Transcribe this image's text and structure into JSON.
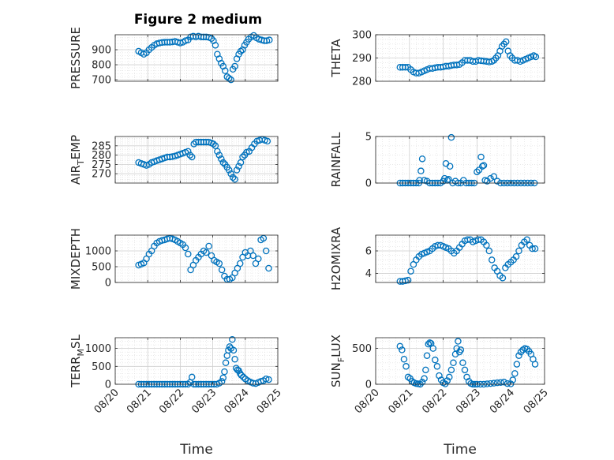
{
  "title": "Figure 2 medium",
  "chart_data": {
    "type": "scatter",
    "marker": "open-circle",
    "color": "#0072BD",
    "grid": "major+minor",
    "xlabel": "Time",
    "x_ticks": [
      "08/20",
      "08/21",
      "08/22",
      "08/23",
      "08/24",
      "08/25"
    ],
    "xlim_days": [
      20,
      25
    ],
    "panels": [
      {
        "id": "pressure",
        "ylabel": "PRESSURE",
        "ylim": [
          690,
          1000
        ],
        "yticks": [
          700,
          800,
          900
        ],
        "x": [
          20.72,
          20.8,
          20.88,
          20.96,
          21.04,
          21.12,
          21.2,
          21.28,
          21.36,
          21.44,
          21.52,
          21.6,
          21.68,
          21.76,
          21.84,
          21.92,
          22.0,
          22.08,
          22.16,
          22.24,
          22.32,
          22.4,
          22.48,
          22.56,
          22.64,
          22.72,
          22.8,
          22.88,
          22.96,
          23.02,
          23.08,
          23.14,
          23.2,
          23.26,
          23.32,
          23.38,
          23.44,
          23.5,
          23.56,
          23.62,
          23.68,
          23.74,
          23.8,
          23.86,
          23.92,
          23.98,
          24.04,
          24.1,
          24.18,
          24.26,
          24.34,
          24.42,
          24.5,
          24.58,
          24.66,
          24.74
        ],
        "y": [
          890,
          880,
          870,
          880,
          900,
          915,
          930,
          940,
          945,
          948,
          950,
          950,
          950,
          952,
          955,
          950,
          945,
          950,
          960,
          965,
          985,
          990,
          985,
          990,
          985,
          985,
          985,
          982,
          975,
          960,
          930,
          870,
          840,
          810,
          790,
          760,
          720,
          710,
          700,
          770,
          790,
          840,
          870,
          890,
          900,
          930,
          950,
          970,
          985,
          995,
          980,
          970,
          965,
          960,
          960,
          965
        ]
      },
      {
        "id": "theta",
        "ylabel": "THETA",
        "ylim": [
          280,
          300
        ],
        "yticks": [
          280,
          290,
          300
        ],
        "x": [
          20.72,
          20.8,
          20.88,
          20.96,
          21.04,
          21.12,
          21.2,
          21.28,
          21.36,
          21.44,
          21.52,
          21.6,
          21.68,
          21.76,
          21.84,
          21.92,
          22.0,
          22.08,
          22.16,
          22.24,
          22.32,
          22.4,
          22.48,
          22.56,
          22.64,
          22.72,
          22.8,
          22.88,
          22.96,
          23.04,
          23.12,
          23.2,
          23.28,
          23.36,
          23.44,
          23.5,
          23.56,
          23.62,
          23.68,
          23.74,
          23.8,
          23.86,
          23.92,
          23.98,
          24.04,
          24.12,
          24.2,
          24.28,
          24.36,
          24.44,
          24.52,
          24.6,
          24.68,
          24.74
        ],
        "y": [
          286,
          286,
          286,
          286,
          285,
          284,
          283.5,
          283.5,
          284,
          284.5,
          285,
          285.5,
          285.5,
          285.8,
          286,
          286,
          286.2,
          286.5,
          286.5,
          286.8,
          287,
          287,
          287.2,
          288,
          289,
          289,
          289,
          288.5,
          288.5,
          289,
          288.8,
          288.7,
          288.5,
          288.3,
          288.5,
          289,
          290,
          291,
          293,
          295,
          296,
          297,
          293,
          291,
          290,
          289,
          289,
          288.5,
          289,
          289.5,
          290,
          290.5,
          291,
          290.5
        ]
      },
      {
        "id": "air_temp",
        "ylabel": "AIR_TEMP",
        "ylim": [
          265,
          290
        ],
        "yticks": [
          270,
          275,
          280,
          285
        ],
        "x": [
          20.72,
          20.8,
          20.88,
          20.96,
          21.04,
          21.12,
          21.2,
          21.28,
          21.36,
          21.44,
          21.52,
          21.6,
          21.68,
          21.76,
          21.84,
          21.92,
          22.0,
          22.08,
          22.16,
          22.24,
          22.3,
          22.36,
          22.42,
          22.48,
          22.56,
          22.64,
          22.72,
          22.8,
          22.88,
          22.96,
          23.02,
          23.08,
          23.14,
          23.2,
          23.26,
          23.32,
          23.38,
          23.44,
          23.5,
          23.56,
          23.62,
          23.68,
          23.74,
          23.8,
          23.86,
          23.92,
          23.98,
          24.04,
          24.12,
          24.2,
          24.28,
          24.36,
          24.44,
          24.52,
          24.6,
          24.68
        ],
        "y": [
          276,
          275.5,
          275,
          274.5,
          275,
          276,
          276.5,
          277,
          277.5,
          278,
          278.5,
          279,
          279,
          279.2,
          279.5,
          280,
          280.5,
          281,
          281.5,
          282,
          280,
          279,
          286,
          287,
          287,
          287,
          287,
          287,
          287,
          286.5,
          286,
          285,
          282,
          280,
          278,
          276,
          275,
          273.5,
          272,
          270,
          268,
          267,
          272,
          274,
          276,
          279,
          280,
          281.5,
          282,
          284,
          286,
          287.5,
          288,
          288.5,
          288,
          287.5
        ]
      },
      {
        "id": "rainfall",
        "ylabel": "RAINFALL",
        "ylim": [
          0,
          5
        ],
        "yticks": [
          0,
          5
        ],
        "x": [
          20.72,
          20.8,
          20.88,
          20.96,
          21.04,
          21.12,
          21.2,
          21.28,
          21.3,
          21.34,
          21.38,
          21.44,
          21.52,
          21.6,
          21.68,
          21.76,
          21.84,
          21.92,
          22.0,
          22.04,
          22.08,
          22.12,
          22.16,
          22.2,
          22.24,
          22.28,
          22.36,
          22.44,
          22.52,
          22.6,
          22.68,
          22.76,
          22.84,
          22.92,
          23.0,
          23.06,
          23.12,
          23.16,
          23.2,
          23.24,
          23.3,
          23.4,
          23.5,
          23.6,
          23.7,
          23.8,
          23.9,
          24.0,
          24.1,
          24.2,
          24.3,
          24.4,
          24.5,
          24.6,
          24.7
        ],
        "y": [
          0,
          0,
          0,
          0,
          0,
          0,
          0,
          0,
          0.3,
          1.3,
          2.6,
          0.3,
          0.2,
          0,
          0,
          0,
          0,
          0,
          0.2,
          0.5,
          2.1,
          0.3,
          0.4,
          1.8,
          4.9,
          0,
          0.2,
          0,
          0,
          0.3,
          0,
          0,
          0,
          0,
          1.2,
          1.4,
          2.8,
          1.8,
          1.9,
          0.3,
          0.2,
          0.5,
          0.7,
          0.2,
          0,
          0,
          0,
          0,
          0,
          0,
          0,
          0,
          0,
          0,
          0
        ]
      },
      {
        "id": "mixdepth",
        "ylabel": "MIXDEPTH",
        "ylim": [
          0,
          1500
        ],
        "yticks": [
          0,
          500,
          1000
        ],
        "x": [
          20.72,
          20.8,
          20.88,
          20.96,
          21.04,
          21.12,
          21.2,
          21.28,
          21.36,
          21.44,
          21.52,
          21.6,
          21.68,
          21.76,
          21.84,
          21.92,
          22.0,
          22.08,
          22.16,
          22.24,
          22.32,
          22.4,
          22.48,
          22.56,
          22.64,
          22.72,
          22.8,
          22.88,
          22.96,
          23.04,
          23.12,
          23.2,
          23.28,
          23.36,
          23.44,
          23.52,
          23.6,
          23.68,
          23.76,
          23.84,
          23.92,
          24.0,
          24.08,
          24.16,
          24.24,
          24.32,
          24.4,
          24.48,
          24.56,
          24.64,
          24.72
        ],
        "y": [
          550,
          580,
          620,
          750,
          900,
          1000,
          1150,
          1250,
          1300,
          1330,
          1350,
          1380,
          1400,
          1380,
          1350,
          1300,
          1250,
          1200,
          1100,
          900,
          400,
          550,
          700,
          800,
          900,
          1000,
          950,
          1150,
          850,
          700,
          650,
          600,
          400,
          200,
          100,
          100,
          150,
          300,
          450,
          600,
          800,
          950,
          850,
          1000,
          850,
          600,
          750,
          1350,
          1400,
          1000,
          450
        ]
      },
      {
        "id": "h2omixra",
        "ylabel": "H2OMIXRA",
        "ylim": [
          3.2,
          7.4
        ],
        "yticks": [
          4,
          6
        ],
        "x": [
          20.72,
          20.8,
          20.88,
          20.96,
          21.04,
          21.12,
          21.2,
          21.28,
          21.36,
          21.44,
          21.52,
          21.6,
          21.68,
          21.76,
          21.84,
          21.92,
          22.0,
          22.08,
          22.16,
          22.24,
          22.32,
          22.4,
          22.48,
          22.56,
          22.64,
          22.72,
          22.8,
          22.88,
          22.96,
          23.04,
          23.12,
          23.2,
          23.28,
          23.36,
          23.44,
          23.52,
          23.6,
          23.68,
          23.76,
          23.84,
          23.92,
          24.0,
          24.08,
          24.16,
          24.24,
          24.32,
          24.4,
          24.48,
          24.56,
          24.64,
          24.72
        ],
        "y": [
          3.3,
          3.3,
          3.35,
          3.4,
          4.2,
          4.8,
          5.2,
          5.5,
          5.7,
          5.8,
          5.9,
          6.0,
          6.2,
          6.4,
          6.5,
          6.5,
          6.4,
          6.3,
          6.2,
          6.0,
          5.8,
          6.0,
          6.3,
          6.6,
          6.9,
          7.0,
          7.0,
          6.8,
          6.9,
          7.0,
          7.0,
          6.8,
          6.5,
          6.0,
          5.2,
          4.5,
          4.2,
          3.8,
          3.6,
          4.5,
          4.8,
          5.0,
          5.2,
          5.5,
          6.0,
          6.5,
          6.8,
          7.0,
          6.5,
          6.2,
          6.2
        ]
      },
      {
        "id": "terr_msl",
        "ylabel": "TERR_MSL",
        "ylim": [
          0,
          1300
        ],
        "yticks": [
          0,
          500,
          1000
        ],
        "x": [
          20.72,
          20.8,
          20.88,
          20.96,
          21.04,
          21.12,
          21.2,
          21.28,
          21.36,
          21.44,
          21.52,
          21.6,
          21.68,
          21.76,
          21.84,
          21.92,
          22.0,
          22.08,
          22.16,
          22.24,
          22.3,
          22.36,
          22.42,
          22.48,
          22.56,
          22.64,
          22.72,
          22.8,
          22.88,
          22.96,
          23.04,
          23.12,
          23.2,
          23.28,
          23.32,
          23.36,
          23.4,
          23.44,
          23.48,
          23.52,
          23.56,
          23.6,
          23.64,
          23.68,
          23.72,
          23.76,
          23.8,
          23.84,
          23.88,
          23.94,
          24.0,
          24.08,
          24.16,
          24.24,
          24.32,
          24.4,
          24.48,
          24.56,
          24.64,
          24.72
        ],
        "y": [
          0,
          0,
          0,
          0,
          0,
          0,
          0,
          0,
          0,
          0,
          0,
          0,
          0,
          0,
          0,
          0,
          0,
          0,
          0,
          0,
          50,
          200,
          0,
          0,
          0,
          0,
          0,
          0,
          0,
          0,
          0,
          0,
          30,
          80,
          180,
          350,
          600,
          800,
          950,
          1050,
          1000,
          1250,
          950,
          700,
          450,
          400,
          380,
          300,
          250,
          200,
          150,
          100,
          60,
          30,
          20,
          50,
          80,
          100,
          150,
          130
        ]
      },
      {
        "id": "sun_flux",
        "ylabel": "SUN_FLUX",
        "ylim": [
          0,
          650
        ],
        "yticks": [
          0,
          500
        ],
        "x": [
          20.72,
          20.78,
          20.84,
          20.9,
          20.96,
          21.02,
          21.08,
          21.14,
          21.2,
          21.26,
          21.32,
          21.38,
          21.44,
          21.48,
          21.52,
          21.56,
          21.6,
          21.64,
          21.7,
          21.76,
          21.82,
          21.88,
          21.94,
          22.0,
          22.06,
          22.12,
          22.18,
          22.24,
          22.3,
          22.36,
          22.4,
          22.44,
          22.48,
          22.52,
          22.58,
          22.64,
          22.7,
          22.76,
          22.82,
          22.88,
          22.94,
          23.0,
          23.1,
          23.2,
          23.3,
          23.4,
          23.5,
          23.6,
          23.7,
          23.8,
          23.9,
          24.0,
          24.06,
          24.12,
          24.18,
          24.24,
          24.3,
          24.36,
          24.42,
          24.48,
          24.54,
          24.6,
          24.66,
          24.72
        ],
        "y": [
          530,
          480,
          350,
          250,
          100,
          80,
          40,
          20,
          10,
          5,
          0,
          30,
          80,
          200,
          400,
          560,
          580,
          570,
          500,
          340,
          250,
          120,
          60,
          20,
          5,
          50,
          100,
          200,
          300,
          420,
          500,
          600,
          450,
          480,
          300,
          200,
          100,
          40,
          10,
          0,
          0,
          0,
          0,
          0,
          5,
          10,
          15,
          20,
          25,
          30,
          10,
          5,
          60,
          150,
          280,
          400,
          450,
          480,
          500,
          490,
          460,
          420,
          350,
          280
        ]
      }
    ]
  }
}
